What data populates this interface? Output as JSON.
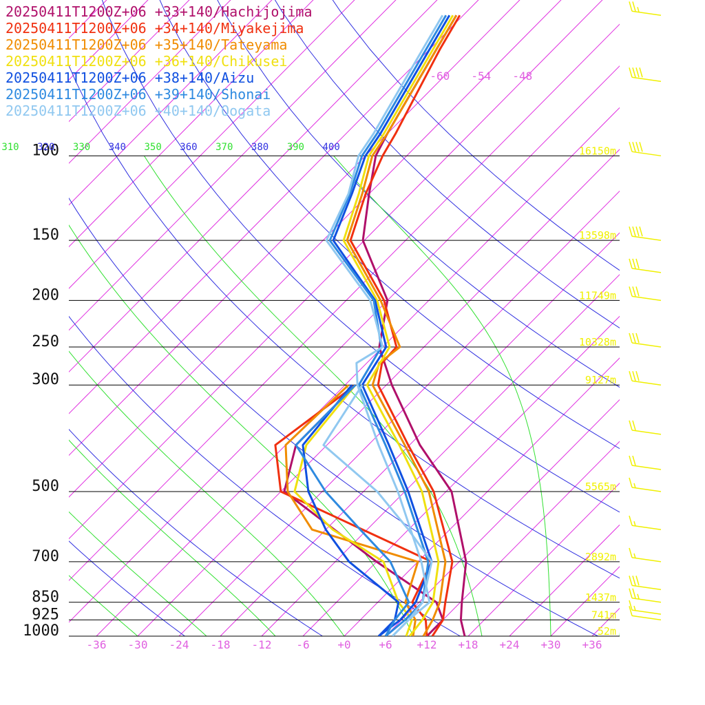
{
  "chart_data": {
    "type": "line",
    "title": "",
    "xlabel": "",
    "ylabel": "",
    "x_scale": "skewed temperature (°C)",
    "y_scale": "log pressure (hPa)",
    "xlim": [
      -40,
      40
    ],
    "ylim": [
      1000,
      100
    ],
    "grid": true,
    "legend_position": "top-left",
    "colors": {
      "isobar": "#000000",
      "isotherm": "#e030e0",
      "dry_adiabat": "#3030e0",
      "moist_adiabat": "#30e030",
      "height_label": "#f0f000",
      "wind_barb": "#f0f000"
    },
    "pressure_levels": [
      1000,
      925,
      850,
      700,
      500,
      300,
      250,
      200,
      150,
      100
    ],
    "pressure_labels": [
      "1000",
      "925",
      "850",
      "700",
      "500",
      "300",
      "250",
      "200",
      "150",
      "100"
    ],
    "height_labels": [
      {
        "p": 100,
        "text": "16150m"
      },
      {
        "p": 150,
        "text": "13598m"
      },
      {
        "p": 200,
        "text": "11749m"
      },
      {
        "p": 250,
        "text": "10328m"
      },
      {
        "p": 300,
        "text": "9127m"
      },
      {
        "p": 500,
        "text": "5565m"
      },
      {
        "p": 700,
        "text": "2892m"
      },
      {
        "p": 850,
        "text": "1437m"
      },
      {
        "p": 925,
        "text": "741m"
      },
      {
        "p": 1000,
        "text": "52m"
      }
    ],
    "x_ticks": [
      -36,
      -30,
      -24,
      -18,
      -12,
      -6,
      0,
      6,
      12,
      18,
      24,
      30,
      36
    ],
    "x_tick_labels": [
      "-36",
      "-30",
      "-24",
      "-18",
      "-12",
      "-6",
      "+0",
      "+6",
      "+12",
      "+18",
      "+24",
      "+30",
      "+36"
    ],
    "upper_temp_labels": [
      {
        "t": -60,
        "text": "-60"
      },
      {
        "t": -54,
        "text": "-54"
      },
      {
        "t": -48,
        "text": "-48"
      }
    ],
    "theta_labels": [
      {
        "theta": 310,
        "text": "310",
        "color": "#30e030"
      },
      {
        "theta": 320,
        "text": "320",
        "color": "#3030e0"
      },
      {
        "theta": 330,
        "text": "330",
        "color": "#30e030"
      },
      {
        "theta": 340,
        "text": "340",
        "color": "#3030e0"
      },
      {
        "theta": 350,
        "text": "350",
        "color": "#30e030"
      },
      {
        "theta": 360,
        "text": "360",
        "color": "#3030e0"
      },
      {
        "theta": 370,
        "text": "370",
        "color": "#30e030"
      },
      {
        "theta": 380,
        "text": "380",
        "color": "#3030e0"
      },
      {
        "theta": 390,
        "text": "390",
        "color": "#30e030"
      },
      {
        "theta": 400,
        "text": "400",
        "color": "#3030e0"
      }
    ],
    "series": [
      {
        "name": "20250411T1200Z+06 +33+140/Hachijojima",
        "color": "#b0106a",
        "temperature": [
          [
            1000,
            17.5
          ],
          [
            925,
            14.6
          ],
          [
            850,
            12.2
          ],
          [
            700,
            7.0
          ],
          [
            500,
            -5.2
          ],
          [
            400,
            -16.5
          ],
          [
            300,
            -29.2
          ],
          [
            250,
            -36.5
          ],
          [
            200,
            -42.0
          ],
          [
            150,
            -54.2
          ],
          [
            120,
            -60.0
          ],
          [
            100,
            -64.5
          ],
          [
            90,
            -66.0
          ],
          [
            60,
            -71.0
          ],
          [
            51,
            -73.0
          ]
        ],
        "dewpoint": [
          [
            1000,
            12.0
          ],
          [
            925,
            12.0
          ],
          [
            850,
            8.5
          ],
          [
            700,
            -6.0
          ],
          [
            500,
            -29.5
          ],
          [
            400,
            -34.5
          ],
          [
            300,
            -34.5
          ]
        ]
      },
      {
        "name": "20250411T1200Z+06 +34+140/Miyakejima",
        "color": "#f03010",
        "temperature": [
          [
            1000,
            12.8
          ],
          [
            925,
            12.0
          ],
          [
            850,
            9.8
          ],
          [
            700,
            5.0
          ],
          [
            500,
            -7.8
          ],
          [
            400,
            -18.2
          ],
          [
            300,
            -31.2
          ],
          [
            270,
            -33.8
          ],
          [
            250,
            -34.0
          ],
          [
            200,
            -42.5
          ],
          [
            150,
            -56.0
          ],
          [
            120,
            -60.5
          ],
          [
            100,
            -63.5
          ],
          [
            90,
            -64.8
          ],
          [
            60,
            -70.5
          ],
          [
            51,
            -72.5
          ]
        ],
        "dewpoint": [
          [
            1000,
            12.0
          ],
          [
            925,
            9.5
          ],
          [
            850,
            5.0
          ],
          [
            700,
            2.0
          ],
          [
            500,
            -30.0
          ],
          [
            400,
            -37.5
          ],
          [
            300,
            -34.5
          ]
        ]
      },
      {
        "name": "20250411T1200Z+06 +35+140/Tateyama",
        "color": "#f08c00",
        "temperature": [
          [
            1000,
            11.5
          ],
          [
            925,
            10.5
          ],
          [
            850,
            9.0
          ],
          [
            700,
            4.0
          ],
          [
            500,
            -8.5
          ],
          [
            400,
            -18.7
          ],
          [
            300,
            -32.0
          ],
          [
            270,
            -34.2
          ],
          [
            250,
            -33.5
          ],
          [
            200,
            -43.0
          ],
          [
            150,
            -56.5
          ],
          [
            120,
            -61.0
          ],
          [
            100,
            -65.0
          ],
          [
            90,
            -66.0
          ],
          [
            60,
            -71.0
          ],
          [
            51,
            -73.0
          ]
        ],
        "dewpoint": [
          [
            1000,
            10.0
          ],
          [
            925,
            8.0
          ],
          [
            850,
            4.0
          ],
          [
            700,
            0.0
          ],
          [
            600,
            -20.0
          ],
          [
            500,
            -29.0
          ],
          [
            400,
            -36.0
          ],
          [
            300,
            -35.5
          ]
        ]
      },
      {
        "name": "20250411T1200Z+06 +36+140/Chikusei",
        "color": "#f0e010",
        "temperature": [
          [
            1000,
            9.5
          ],
          [
            925,
            9.0
          ],
          [
            850,
            8.0
          ],
          [
            700,
            3.0
          ],
          [
            500,
            -9.5
          ],
          [
            400,
            -19.5
          ],
          [
            300,
            -32.8
          ],
          [
            250,
            -35.0
          ],
          [
            200,
            -43.5
          ],
          [
            150,
            -57.0
          ],
          [
            120,
            -61.5
          ],
          [
            100,
            -65.5
          ],
          [
            90,
            -66.5
          ],
          [
            60,
            -71.5
          ],
          [
            51,
            -73.5
          ]
        ],
        "dewpoint": [
          [
            1000,
            9.0
          ],
          [
            925,
            7.5
          ],
          [
            850,
            3.0
          ],
          [
            700,
            -5.0
          ],
          [
            600,
            -17.0
          ],
          [
            500,
            -28.0
          ],
          [
            400,
            -33.0
          ],
          [
            300,
            -34.5
          ]
        ]
      },
      {
        "name": "20250411T1200Z+06 +38+140/Aizu",
        "color": "#1050e0",
        "temperature": [
          [
            1000,
            5.0
          ],
          [
            925,
            5.8
          ],
          [
            850,
            5.5
          ],
          [
            700,
            2.0
          ],
          [
            500,
            -11.5
          ],
          [
            400,
            -21.0
          ],
          [
            300,
            -33.5
          ],
          [
            250,
            -35.5
          ],
          [
            200,
            -43.8
          ],
          [
            150,
            -58.5
          ],
          [
            120,
            -62.5
          ],
          [
            100,
            -66.0
          ],
          [
            90,
            -67.0
          ],
          [
            60,
            -72.0
          ],
          [
            51,
            -74.0
          ]
        ],
        "dewpoint": [
          [
            1000,
            5.0
          ],
          [
            925,
            5.0
          ],
          [
            850,
            3.0
          ],
          [
            700,
            -10.0
          ],
          [
            600,
            -18.0
          ],
          [
            500,
            -26.0
          ],
          [
            400,
            -33.5
          ],
          [
            300,
            -35.0
          ]
        ]
      },
      {
        "name": "20250411T1200Z+06 +39+140/Shonai",
        "color": "#2e8ae0",
        "temperature": [
          [
            1000,
            6.0
          ],
          [
            925,
            6.5
          ],
          [
            850,
            6.5
          ],
          [
            700,
            1.5
          ],
          [
            500,
            -12.0
          ],
          [
            400,
            -21.5
          ],
          [
            300,
            -34.0
          ],
          [
            250,
            -36.2
          ],
          [
            200,
            -44.0
          ],
          [
            150,
            -59.0
          ],
          [
            120,
            -62.8
          ],
          [
            100,
            -66.5
          ],
          [
            90,
            -67.5
          ],
          [
            60,
            -72.5
          ],
          [
            51,
            -74.5
          ]
        ],
        "dewpoint": [
          [
            1000,
            6.0
          ],
          [
            925,
            5.0
          ],
          [
            850,
            4.5
          ],
          [
            700,
            -4.0
          ],
          [
            600,
            -13.0
          ],
          [
            500,
            -23.5
          ],
          [
            400,
            -34.5
          ],
          [
            300,
            -34.5
          ]
        ]
      },
      {
        "name": "20250411T1200Z+06 +40+140/Oogata",
        "color": "#90c8f0",
        "temperature": [
          [
            1000,
            7.0
          ],
          [
            925,
            7.0
          ],
          [
            850,
            7.5
          ],
          [
            700,
            0.5
          ],
          [
            500,
            -13.0
          ],
          [
            400,
            -22.5
          ],
          [
            300,
            -34.2
          ],
          [
            270,
            -37.5
          ],
          [
            250,
            -36.0
          ],
          [
            200,
            -44.5
          ],
          [
            150,
            -59.5
          ],
          [
            120,
            -63.0
          ],
          [
            100,
            -67.0
          ],
          [
            90,
            -68.0
          ],
          [
            60,
            -73.0
          ],
          [
            51,
            -75.0
          ]
        ],
        "dewpoint": [
          [
            1000,
            7.0
          ],
          [
            925,
            7.0
          ],
          [
            850,
            6.5
          ],
          [
            700,
            2.0
          ],
          [
            600,
            -6.0
          ],
          [
            500,
            -16.0
          ],
          [
            400,
            -30.5
          ],
          [
            300,
            -33.5
          ]
        ]
      }
    ],
    "wind_barbs": [
      {
        "p": 51,
        "speed_kt": 25
      },
      {
        "p": 70,
        "speed_kt": 40
      },
      {
        "p": 100,
        "speed_kt": 40
      },
      {
        "p": 150,
        "speed_kt": 40
      },
      {
        "p": 175,
        "speed_kt": 30
      },
      {
        "p": 200,
        "speed_kt": 30
      },
      {
        "p": 250,
        "speed_kt": 30
      },
      {
        "p": 300,
        "speed_kt": 30
      },
      {
        "p": 380,
        "speed_kt": 20
      },
      {
        "p": 450,
        "speed_kt": 20
      },
      {
        "p": 500,
        "speed_kt": 15
      },
      {
        "p": 600,
        "speed_kt": 15
      },
      {
        "p": 700,
        "speed_kt": 15
      },
      {
        "p": 800,
        "speed_kt": 30
      },
      {
        "p": 850,
        "speed_kt": 25
      },
      {
        "p": 900,
        "speed_kt": 15
      },
      {
        "p": 925,
        "speed_kt": 10
      }
    ]
  }
}
